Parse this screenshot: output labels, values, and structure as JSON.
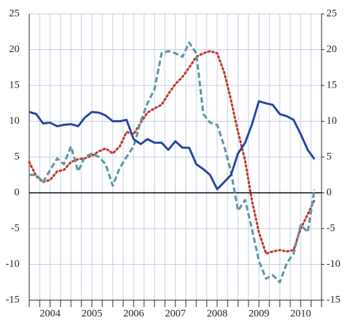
{
  "chart_data": {
    "type": "line",
    "x": [
      2004,
      2004.17,
      2004.33,
      2004.5,
      2004.67,
      2004.83,
      2005,
      2005.17,
      2005.33,
      2005.5,
      2005.67,
      2005.83,
      2006,
      2006.17,
      2006.33,
      2006.5,
      2006.67,
      2006.83,
      2007,
      2007.17,
      2007.33,
      2007.5,
      2007.67,
      2007.83,
      2008,
      2008.17,
      2008.33,
      2008.5,
      2008.67,
      2008.83,
      2009,
      2009.17,
      2009.33,
      2009.5,
      2009.67,
      2009.83,
      2010,
      2010.17,
      2010.33,
      2010.5,
      2010.67,
      2010.83
    ],
    "series": [
      {
        "color": "#2444a0",
        "dash": "solid",
        "values": [
          11.3,
          11.0,
          9.7,
          9.8,
          9.3,
          9.5,
          9.6,
          9.3,
          10.5,
          11.3,
          11.2,
          10.8,
          10.0,
          10.0,
          10.2,
          7.5,
          6.8,
          7.5,
          7.0,
          7.0,
          6.0,
          7.2,
          6.3,
          6.3,
          4.0,
          3.3,
          2.5,
          0.5,
          1.5,
          2.5,
          5.5,
          7.0,
          9.5,
          12.8,
          12.5,
          12.3,
          11.0,
          10.7,
          10.2,
          8.2,
          6.0,
          4.7
        ]
      },
      {
        "color": "#c0392b",
        "dash": "dotted",
        "values": [
          4.3,
          2.3,
          1.5,
          1.8,
          3.0,
          3.2,
          4.3,
          4.7,
          4.8,
          5.2,
          5.8,
          6.2,
          5.5,
          6.5,
          8.5,
          8.2,
          9.8,
          11.2,
          11.8,
          12.3,
          13.8,
          15.2,
          16.2,
          17.5,
          19.0,
          19.5,
          19.8,
          19.5,
          16.8,
          13.0,
          8.5,
          4.5,
          -1.0,
          -5.5,
          -8.5,
          -8.2,
          -8.0,
          -8.2,
          -8.0,
          -5.0,
          -3.0,
          -1.0
        ]
      },
      {
        "color": "#5b97a6",
        "dash": "dashed",
        "values": [
          2.5,
          2.5,
          1.5,
          3.2,
          4.8,
          4.0,
          6.5,
          3.0,
          5.0,
          5.5,
          5.0,
          4.0,
          1.0,
          3.5,
          5.0,
          6.5,
          10.0,
          12.5,
          14.5,
          19.5,
          19.8,
          19.5,
          19.0,
          21.0,
          19.5,
          11.0,
          9.8,
          9.5,
          6.5,
          3.0,
          -2.5,
          -1.0,
          -5.0,
          -9.5,
          -12.0,
          -11.5,
          -12.5,
          -9.8,
          -8.5,
          -4.5,
          -5.5,
          0.5
        ]
      }
    ],
    "xlim": [
      2004,
      2011
    ],
    "xticks": [
      {
        "value": 2004.5,
        "label": "2004"
      },
      {
        "value": 2005.5,
        "label": "2005"
      },
      {
        "value": 2006.5,
        "label": "2006"
      },
      {
        "value": 2007.5,
        "label": "2007"
      },
      {
        "value": 2008.5,
        "label": "2008"
      },
      {
        "value": 2009.5,
        "label": "2009"
      },
      {
        "value": 2010.5,
        "label": "2010"
      }
    ],
    "xgrid": [
      2004,
      2004.25,
      2004.5,
      2004.75,
      2005,
      2005.25,
      2005.5,
      2005.75,
      2006,
      2006.25,
      2006.5,
      2006.75,
      2007,
      2007.25,
      2007.5,
      2007.75,
      2008,
      2008.25,
      2008.5,
      2008.75,
      2009,
      2009.25,
      2009.5,
      2009.75,
      2010,
      2010.25,
      2010.5,
      2010.75,
      2011
    ],
    "ylim": [
      -15,
      25
    ],
    "yticks": [
      -15,
      -10,
      -5,
      0,
      5,
      10,
      15,
      20,
      25
    ],
    "y2lim": [
      -15,
      25
    ],
    "y2ticks": [
      -15,
      -10,
      -5,
      0,
      5,
      10,
      15,
      20,
      25
    ],
    "grid": true
  }
}
